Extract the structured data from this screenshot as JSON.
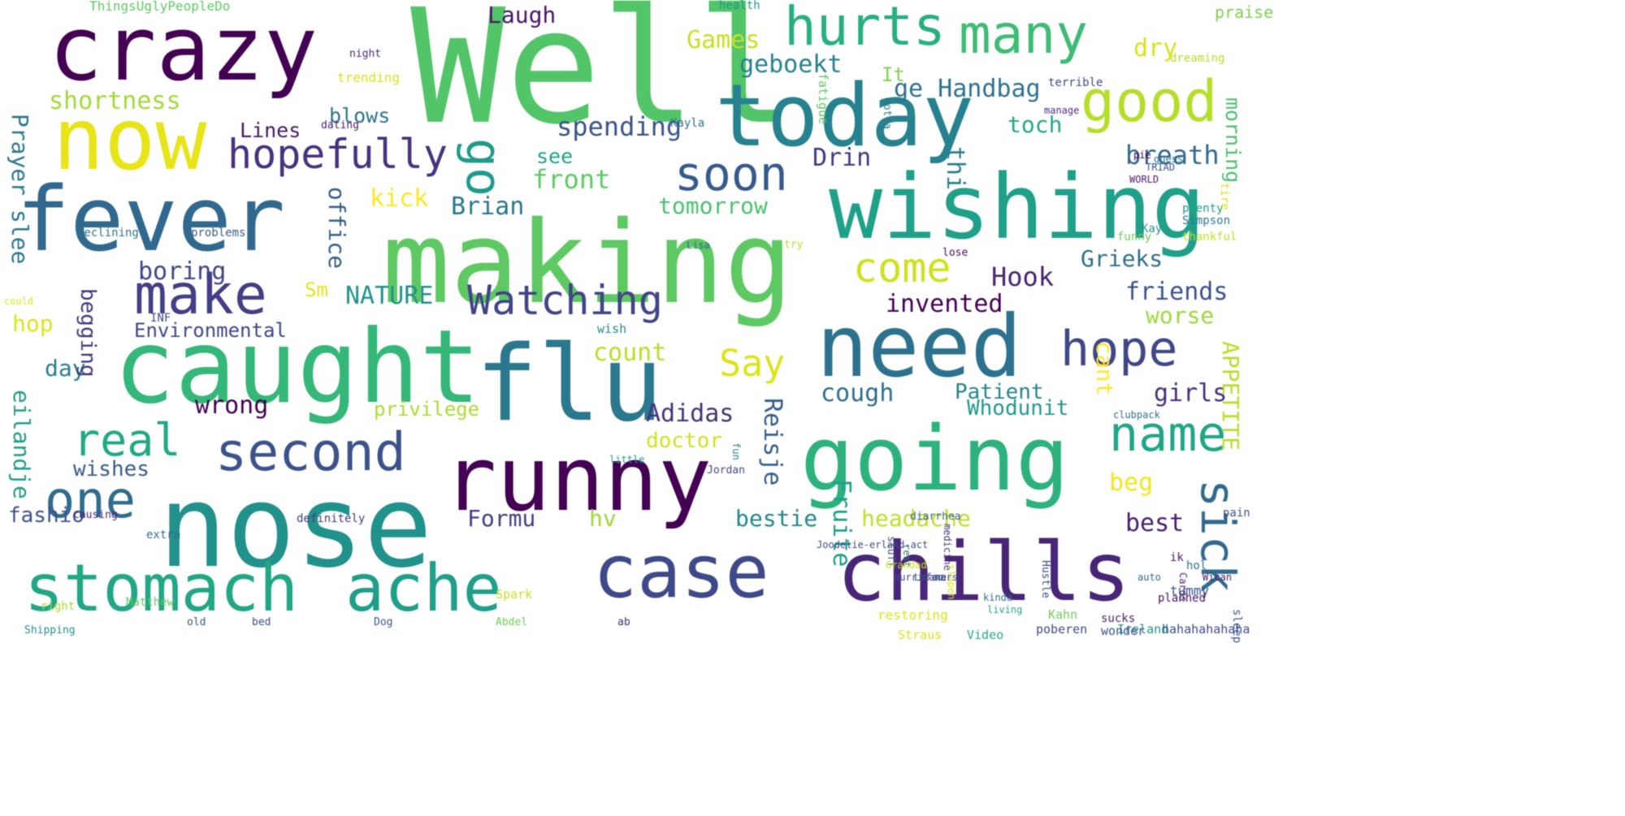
{
  "words": [
    {
      "text": "Well",
      "color": "#52c569"
    },
    {
      "text": "making",
      "color": "#5ec962"
    },
    {
      "text": "nose",
      "color": "#21918c"
    },
    {
      "text": "caught",
      "color": "#35b779"
    },
    {
      "text": "runny",
      "color": "#440154"
    },
    {
      "text": "flu",
      "color": "#2a788e"
    },
    {
      "text": "today",
      "color": "#26828e"
    },
    {
      "text": "wishing",
      "color": "#1fa088"
    },
    {
      "text": "fever",
      "color": "#31688e"
    },
    {
      "text": "crazy",
      "color": "#440154"
    },
    {
      "text": "now",
      "color": "#e7e419"
    },
    {
      "text": "need",
      "color": "#2c728e"
    },
    {
      "text": "going",
      "color": "#2db27d"
    },
    {
      "text": "chills",
      "color": "#482576"
    },
    {
      "text": "case",
      "color": "#3e4989"
    },
    {
      "text": "stomach",
      "color": "#22a785"
    },
    {
      "text": "ache",
      "color": "#1f9e89"
    },
    {
      "text": "hurts",
      "color": "#29af7f"
    },
    {
      "text": "many",
      "color": "#3dbc74"
    },
    {
      "text": "good",
      "color": "#b5de2b"
    },
    {
      "text": "hopefully",
      "color": "#46327e"
    },
    {
      "text": "soon",
      "color": "#375a8c"
    },
    {
      "text": "make",
      "color": "#433e85"
    },
    {
      "text": "Watching",
      "color": "#414487"
    },
    {
      "text": "second",
      "color": "#3b528b"
    },
    {
      "text": "one",
      "color": "#2f6c8e"
    },
    {
      "text": "real",
      "color": "#22a884"
    },
    {
      "text": "name",
      "color": "#21a685"
    },
    {
      "text": "hope",
      "color": "#3f4788"
    },
    {
      "text": "sick",
      "color": "#306a8e"
    },
    {
      "text": "come",
      "color": "#cde11d"
    },
    {
      "text": "go",
      "color": "#1e9b8a"
    },
    {
      "text": "Say",
      "color": "#dde318"
    },
    {
      "text": "shortness",
      "color": "#a0da39"
    },
    {
      "text": "Games",
      "color": "#c8e020"
    },
    {
      "text": "Laugh",
      "color": "#481668"
    },
    {
      "text": "geboekt",
      "color": "#26818e"
    },
    {
      "text": "ge Handbag",
      "color": "#2d718e"
    },
    {
      "text": "dry",
      "color": "#d8e219"
    },
    {
      "text": "praise",
      "color": "#7ad151"
    },
    {
      "text": "morning",
      "color": "#4ac16d"
    },
    {
      "text": "spending",
      "color": "#3a538b"
    },
    {
      "text": "front",
      "color": "#5ec962"
    },
    {
      "text": "see",
      "color": "#20a386"
    },
    {
      "text": "kick",
      "color": "#fde725"
    },
    {
      "text": "Brian",
      "color": "#2a768e"
    },
    {
      "text": "tomorrow",
      "color": "#4ac16d"
    },
    {
      "text": "Drin",
      "color": "#453882"
    },
    {
      "text": "breath",
      "color": "#31688e"
    },
    {
      "text": "thi",
      "color": "#27808e"
    },
    {
      "text": "toch",
      "color": "#22a884"
    },
    {
      "text": "Grieks",
      "color": "#2e6f8e"
    },
    {
      "text": "Hook",
      "color": "#482475"
    },
    {
      "text": "invented",
      "color": "#440154"
    },
    {
      "text": "friends",
      "color": "#3b528b"
    },
    {
      "text": "worse",
      "color": "#9bd93c"
    },
    {
      "text": "count",
      "color": "#b8de29"
    },
    {
      "text": "Environmental",
      "color": "#3f4889"
    },
    {
      "text": "NATURE",
      "color": "#20928c"
    },
    {
      "text": "boring",
      "color": "#404588"
    },
    {
      "text": "office",
      "color": "#355f8d"
    },
    {
      "text": "Lines",
      "color": "#481769"
    },
    {
      "text": "blows",
      "color": "#2c738e"
    },
    {
      "text": "Prayer slee",
      "color": "#2a788e"
    },
    {
      "text": "It",
      "color": "#7fd34e"
    },
    {
      "text": "Sm",
      "color": "#e5e419"
    },
    {
      "text": "hop",
      "color": "#dde318"
    },
    {
      "text": "day",
      "color": "#277f8e"
    },
    {
      "text": "begging",
      "color": "#453781"
    },
    {
      "text": "wrong",
      "color": "#440154"
    },
    {
      "text": "privilege",
      "color": "#aadc32"
    },
    {
      "text": "Adidas",
      "color": "#46337e"
    },
    {
      "text": "cough",
      "color": "#2e6e8e"
    },
    {
      "text": "Patient",
      "color": "#25858e"
    },
    {
      "text": "cant",
      "color": "#fde725"
    },
    {
      "text": "girls",
      "color": "#46307e"
    },
    {
      "text": "Whodunit",
      "color": "#1f998a"
    },
    {
      "text": "doctor",
      "color": "#d2e21b"
    },
    {
      "text": "Reisje",
      "color": "#34608d"
    },
    {
      "text": "eilandje",
      "color": "#1f9f88"
    },
    {
      "text": "wishes",
      "color": "#365c8d"
    },
    {
      "text": "fashio",
      "color": "#3b528b"
    },
    {
      "text": "headache",
      "color": "#c2df23"
    },
    {
      "text": "Formu",
      "color": "#433d84"
    },
    {
      "text": "hv",
      "color": "#9bd93c"
    },
    {
      "text": "bestie",
      "color": "#24878e"
    },
    {
      "text": "beg",
      "color": "#f4e61e"
    },
    {
      "text": "best",
      "color": "#481f70"
    },
    {
      "text": "Fruite",
      "color": "#1f9f88"
    },
    {
      "text": "APPETITE",
      "color": "#b8de29"
    },
    {
      "text": "ThingsUglyPeopleDo",
      "color": "#5ec962"
    },
    {
      "text": "trending",
      "color": "#d8e219"
    },
    {
      "text": "dating",
      "color": "#481b6d"
    },
    {
      "text": "declining",
      "color": "#2c728e"
    },
    {
      "text": "problems",
      "color": "#38588c"
    },
    {
      "text": "night",
      "color": "#482878"
    },
    {
      "text": "health",
      "color": "#20938c"
    },
    {
      "text": "dreaming",
      "color": "#b5de2b"
    },
    {
      "text": "terrible",
      "color": "#3f4788"
    },
    {
      "text": "manage",
      "color": "#46307e"
    },
    {
      "text": "gotta",
      "color": "#2a778e"
    },
    {
      "text": "fatigue",
      "color": "#5cc863"
    },
    {
      "text": "Kayla",
      "color": "#2c718e"
    },
    {
      "text": "plenty",
      "color": "#1fa088"
    },
    {
      "text": "Simpson",
      "color": "#2a788e"
    },
    {
      "text": "lose",
      "color": "#460b5e"
    },
    {
      "text": "tire",
      "color": "#d5e21a"
    },
    {
      "text": "try",
      "color": "#ade028"
    },
    {
      "text": "Lisa",
      "color": "#31688e"
    },
    {
      "text": "wish",
      "color": "#23888e"
    },
    {
      "text": "INF",
      "color": "#3e4989"
    },
    {
      "text": "could",
      "color": "#dde318"
    },
    {
      "text": "causing",
      "color": "#482878"
    },
    {
      "text": "extra",
      "color": "#2e6e8e"
    },
    {
      "text": "definitely",
      "color": "#453882"
    },
    {
      "text": "diarrhea",
      "color": "#31688e"
    },
    {
      "text": "pain",
      "color": "#3c508b"
    },
    {
      "text": "Jordan",
      "color": "#3f4788"
    },
    {
      "text": "little",
      "color": "#1e9c89"
    },
    {
      "text": "tummy",
      "color": "#3b528b"
    },
    {
      "text": "planned",
      "color": "#481467"
    },
    {
      "text": "sucks",
      "color": "#482071"
    },
    {
      "text": "restoring",
      "color": "#dde318"
    },
    {
      "text": "Spark",
      "color": "#c8e020"
    },
    {
      "text": "sleep",
      "color": "#365c8d"
    },
    {
      "text": "Matthew",
      "color": "#5ec962"
    },
    {
      "text": "right",
      "color": "#aadc32"
    },
    {
      "text": "old",
      "color": "#38588c"
    },
    {
      "text": "Shipping",
      "color": "#21918c"
    },
    {
      "text": "poberen",
      "color": "#3e4989"
    },
    {
      "text": "Ireland",
      "color": "#21918c"
    },
    {
      "text": "hahahahahaha",
      "color": "#3e4989"
    },
    {
      "text": "Kahn",
      "color": "#6ece58"
    },
    {
      "text": "Video",
      "color": "#22a785"
    },
    {
      "text": "Straus",
      "color": "#dde318"
    },
    {
      "text": "wonder",
      "color": "#3b528b"
    },
    {
      "text": "Cards",
      "color": "#482575"
    },
    {
      "text": "hol",
      "color": "#2c718e"
    },
    {
      "text": "ik",
      "color": "#481a6c"
    },
    {
      "text": "medicine",
      "color": "#453581"
    },
    {
      "text": "rest",
      "color": "#2a768e"
    },
    {
      "text": "Hustle",
      "color": "#3e4989"
    },
    {
      "text": "slapen",
      "color": "#d8e219"
    },
    {
      "text": "stuff",
      "color": "#3b528b"
    },
    {
      "text": "fun",
      "color": "#277f8e"
    },
    {
      "text": "Joodelie-erland-act",
      "color": "#3e4989"
    },
    {
      "text": "Wican",
      "color": "#481769"
    },
    {
      "text": "auto",
      "color": "#31688e"
    },
    {
      "text": "Grandad",
      "color": "#c8e020"
    },
    {
      "text": "Lmfao",
      "color": "#3b528b"
    },
    {
      "text": "kinda",
      "color": "#2e6f8e"
    },
    {
      "text": "living",
      "color": "#22a884"
    },
    {
      "text": "Hurricane",
      "color": "#3e4989"
    },
    {
      "text": "mars",
      "color": "#3b528b"
    },
    {
      "text": "clubpack",
      "color": "#2c718e"
    },
    {
      "text": "Kay",
      "color": "#21918c"
    },
    {
      "text": "funny",
      "color": "#6ece58"
    },
    {
      "text": "thankful",
      "color": "#c2df23"
    },
    {
      "text": "WORLD",
      "color": "#481a6c"
    },
    {
      "text": "TRIAD",
      "color": "#3b528b"
    },
    {
      "text": "guess",
      "color": "#2a788e"
    },
    {
      "text": "pie",
      "color": "#440154"
    },
    {
      "text": "bed",
      "color": "#3e4989"
    },
    {
      "text": "Dog",
      "color": "#3b528b"
    },
    {
      "text": "Abdel",
      "color": "#6ece58"
    },
    {
      "text": "ab",
      "color": "#482878"
    }
  ]
}
